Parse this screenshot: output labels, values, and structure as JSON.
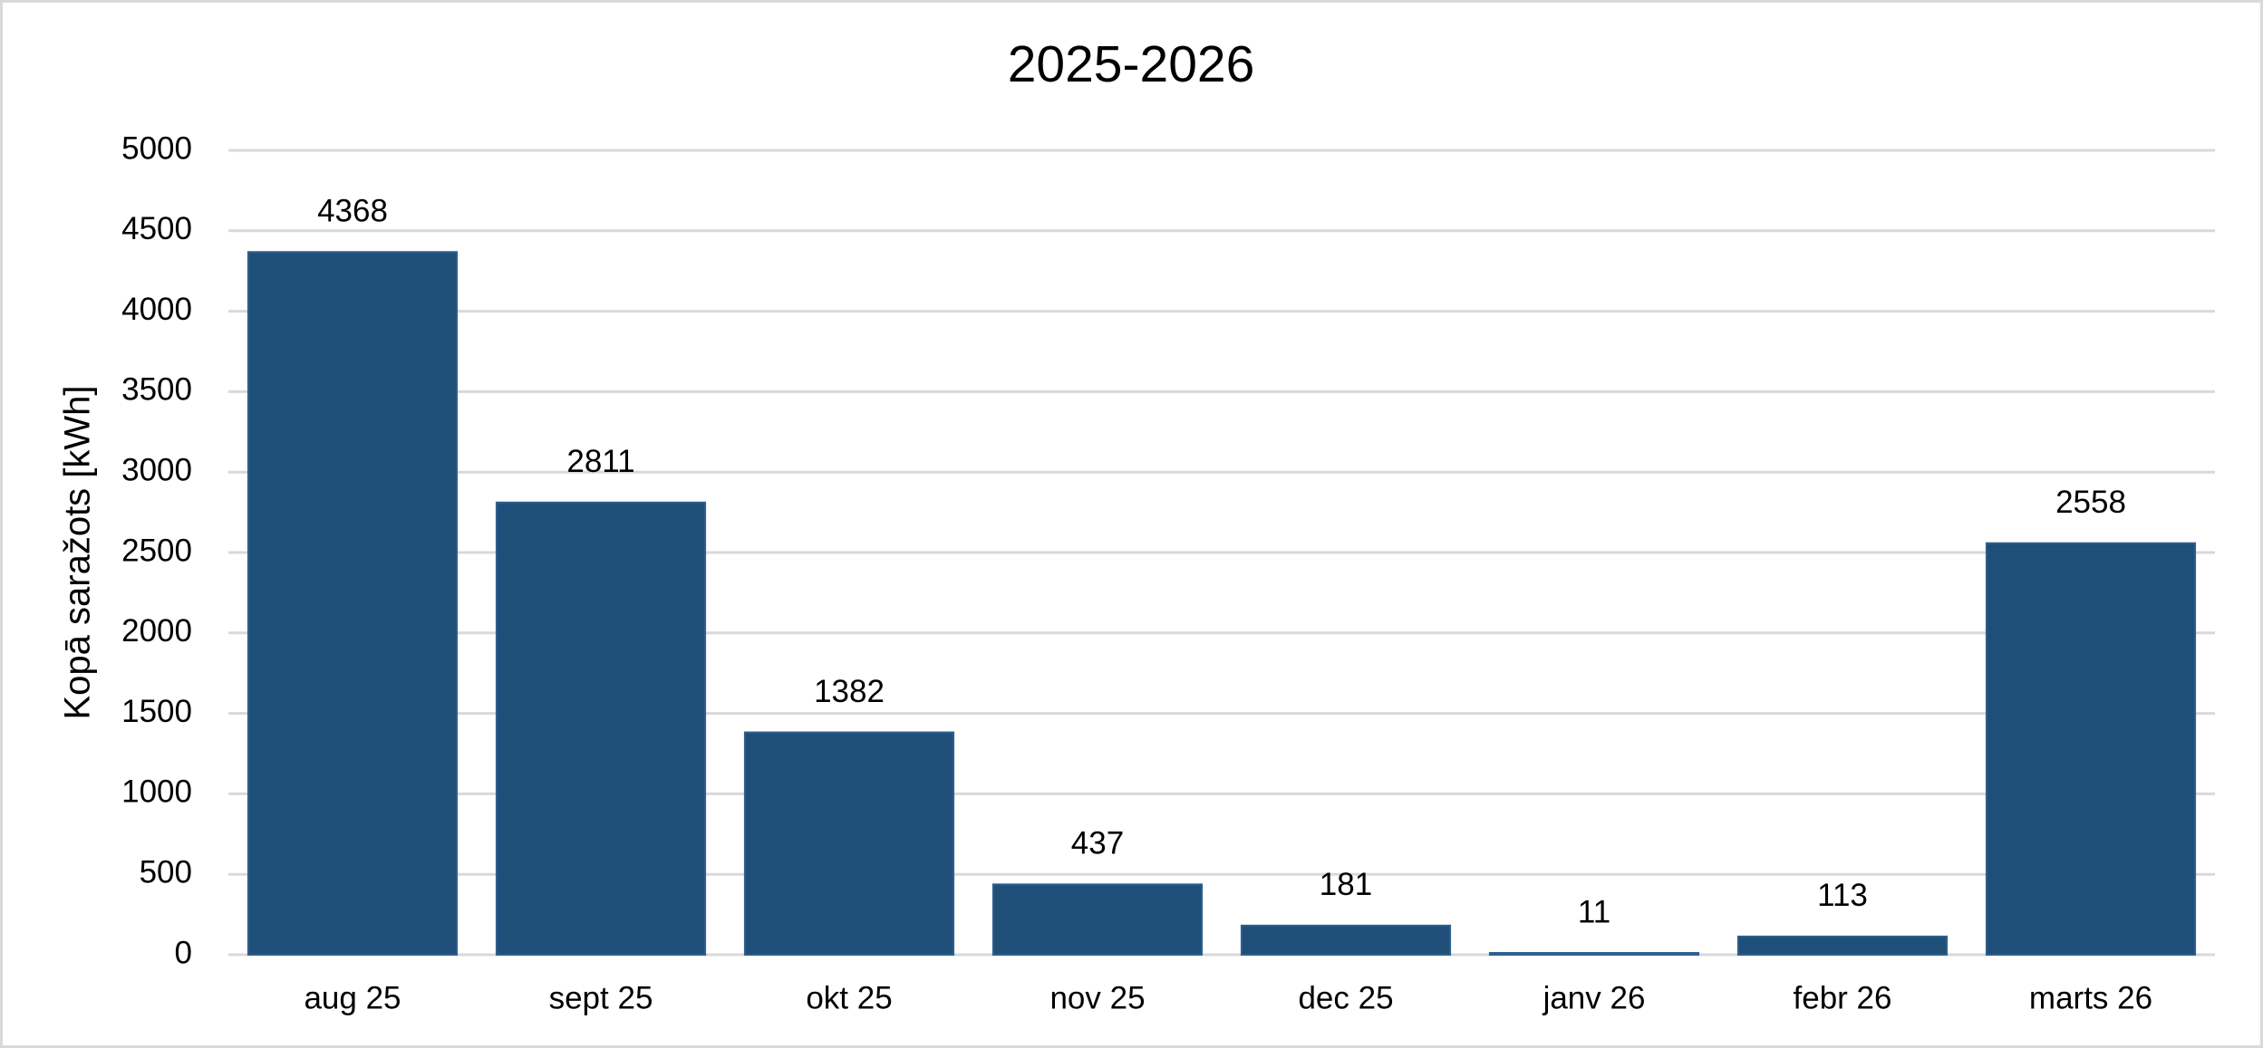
{
  "chart_data": {
    "type": "bar",
    "title": "2025-2026",
    "y_label": "Kopā saražots [kWh]",
    "categories": [
      "aug 25",
      "sept 25",
      "okt 25",
      "nov 25",
      "dec 25",
      "janv 26",
      "febr 26",
      "marts 26"
    ],
    "values": [
      4368,
      2811,
      1382,
      437,
      181,
      11,
      113,
      2558
    ],
    "color": "#1f4e79",
    "ylim": [
      0,
      5000
    ],
    "yticks": [
      0,
      500,
      1000,
      1500,
      2000,
      2500,
      3000,
      3500,
      4000,
      4500,
      5000
    ],
    "grid": true
  }
}
